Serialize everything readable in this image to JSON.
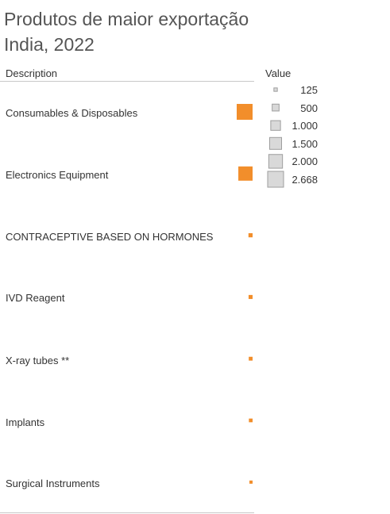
{
  "title": "Produtos de maior exportação India, 2022",
  "column_header": "Description",
  "legend": {
    "title": "Value",
    "items": [
      {
        "label": "125",
        "value": 125
      },
      {
        "label": "500",
        "value": 500
      },
      {
        "label": "1.000",
        "value": 1000
      },
      {
        "label": "1.500",
        "value": 1500
      },
      {
        "label": "2.000",
        "value": 2000
      },
      {
        "label": "2.668",
        "value": 2668
      }
    ]
  },
  "colors": {
    "mark": "#f28e2b",
    "legend_fill": "#d9d9d9",
    "legend_stroke": "#9e9e9e"
  },
  "chart_data": {
    "type": "table",
    "encoding": "square size proportional to value",
    "title": "Produtos de maior exportação India, 2022",
    "categories": [
      "Consumables & Disposables",
      "Electronics Equipment",
      "CONTRACEPTIVE BASED ON HORMONES",
      "IVD Reagent",
      "X-ray tubes **",
      "Implants",
      "Surgical Instruments"
    ],
    "values": [
      2668,
      2150,
      180,
      170,
      155,
      145,
      70
    ],
    "size_range": [
      125,
      2668
    ]
  }
}
